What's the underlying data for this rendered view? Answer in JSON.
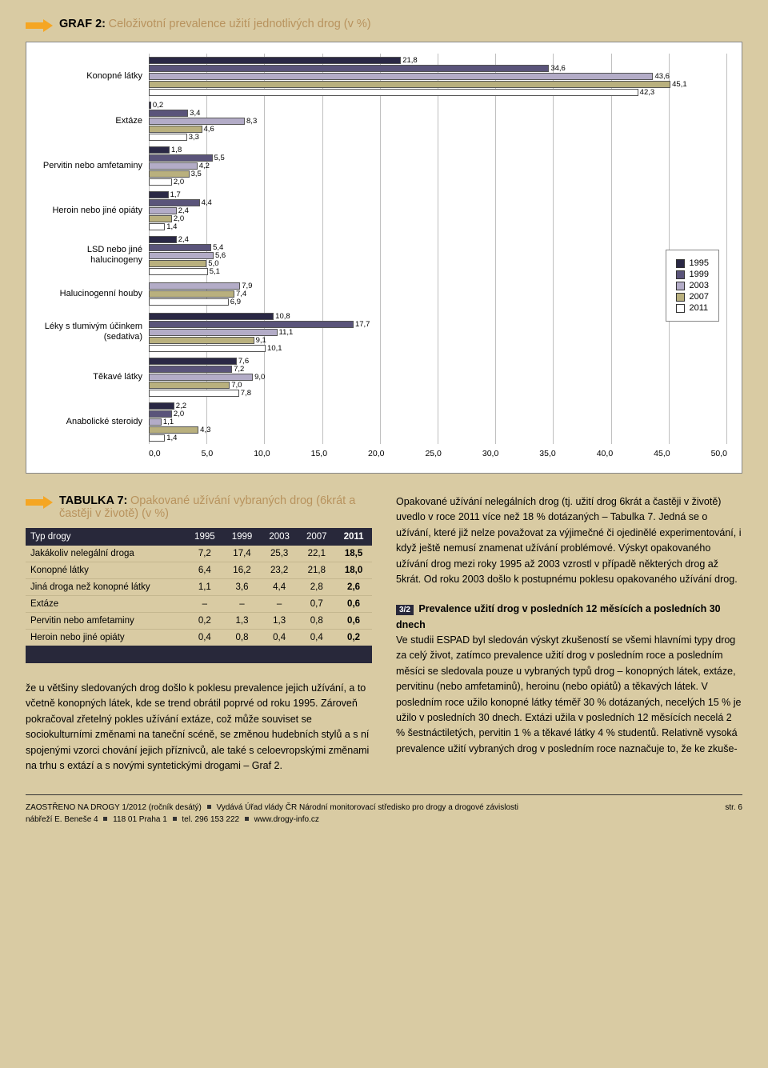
{
  "graf2": {
    "title_strong": "GRAF 2:",
    "title_rest": "Celoživotní prevalence užití jednotlivých drog (v %)",
    "xmax": 50,
    "xticks": [
      "0,0",
      "5,0",
      "10,0",
      "15,0",
      "20,0",
      "25,0",
      "30,0",
      "35,0",
      "40,0",
      "45,0",
      "50,0"
    ],
    "series": {
      "y1995": {
        "label": "1995",
        "color": "#2a2845"
      },
      "y1999": {
        "label": "1999",
        "color": "#5a547a"
      },
      "y2003": {
        "label": "2003",
        "color": "#b3acc7"
      },
      "y2007": {
        "label": "2007",
        "color": "#b9b07e"
      },
      "y2011": {
        "label": "2011",
        "color": "#ffffff"
      }
    },
    "groups": [
      {
        "label": "Konopné látky",
        "bars": [
          {
            "v": 21.8,
            "t": "21,8",
            "s": "y1995"
          },
          {
            "v": 34.6,
            "t": "34,6",
            "s": "y1999"
          },
          {
            "v": 43.6,
            "t": "43,6",
            "s": "y2003"
          },
          {
            "v": 45.1,
            "t": "45,1",
            "s": "y2007"
          },
          {
            "v": 42.3,
            "t": "42,3",
            "s": "y2011"
          }
        ]
      },
      {
        "label": "Extáze",
        "bars": [
          {
            "v": 0.2,
            "t": "0,2",
            "s": "y1995"
          },
          {
            "v": 3.4,
            "t": "3,4",
            "s": "y1999"
          },
          {
            "v": 8.3,
            "t": "8,3",
            "s": "y2003"
          },
          {
            "v": 4.6,
            "t": "4,6",
            "s": "y2007"
          },
          {
            "v": 3.3,
            "t": "3,3",
            "s": "y2011"
          }
        ]
      },
      {
        "label": "Pervitin nebo amfetaminy",
        "bars": [
          {
            "v": 1.8,
            "t": "1,8",
            "s": "y1995"
          },
          {
            "v": 5.5,
            "t": "5,5",
            "s": "y1999"
          },
          {
            "v": 4.2,
            "t": "4,2",
            "s": "y2003"
          },
          {
            "v": 3.5,
            "t": "3,5",
            "s": "y2007"
          },
          {
            "v": 2.0,
            "t": "2,0",
            "s": "y2011"
          }
        ]
      },
      {
        "label": "Heroin nebo jiné opiáty",
        "bars": [
          {
            "v": 1.7,
            "t": "1,7",
            "s": "y1995"
          },
          {
            "v": 4.4,
            "t": "4,4",
            "s": "y1999"
          },
          {
            "v": 2.4,
            "t": "2,4",
            "s": "y2003"
          },
          {
            "v": 2.0,
            "t": "2,0",
            "s": "y2007"
          },
          {
            "v": 1.4,
            "t": "1,4",
            "s": "y2011"
          }
        ]
      },
      {
        "label": "LSD nebo jiné halucinogeny",
        "bars": [
          {
            "v": 2.4,
            "t": "2,4",
            "s": "y1995"
          },
          {
            "v": 5.4,
            "t": "5,4",
            "s": "y1999"
          },
          {
            "v": 5.6,
            "t": "5,6",
            "s": "y2003"
          },
          {
            "v": 5.0,
            "t": "5,0",
            "s": "y2007"
          },
          {
            "v": 5.1,
            "t": "5,1",
            "s": "y2011"
          }
        ]
      },
      {
        "label": "Halucinogenní houby",
        "bars": [
          {
            "v": 7.9,
            "t": "7,9",
            "s": "y2003"
          },
          {
            "v": 7.4,
            "t": "7,4",
            "s": "y2007"
          },
          {
            "v": 6.9,
            "t": "6,9",
            "s": "y2011"
          }
        ]
      },
      {
        "label": "Léky s tlumivým účinkem (sedativa)",
        "bars": [
          {
            "v": 10.8,
            "t": "10,8",
            "s": "y1995"
          },
          {
            "v": 17.7,
            "t": "17,7",
            "s": "y1999"
          },
          {
            "v": 11.1,
            "t": "11,1",
            "s": "y2003"
          },
          {
            "v": 9.1,
            "t": "9,1",
            "s": "y2007"
          },
          {
            "v": 10.1,
            "t": "10,1",
            "s": "y2011"
          }
        ]
      },
      {
        "label": "Těkavé látky",
        "bars": [
          {
            "v": 7.6,
            "t": "7,6",
            "s": "y1995"
          },
          {
            "v": 7.2,
            "t": "7,2",
            "s": "y1999"
          },
          {
            "v": 9.0,
            "t": "9,0",
            "s": "y2003"
          },
          {
            "v": 7.0,
            "t": "7,0",
            "s": "y2007"
          },
          {
            "v": 7.8,
            "t": "7,8",
            "s": "y2011"
          }
        ]
      },
      {
        "label": "Anabolické steroidy",
        "bars": [
          {
            "v": 2.2,
            "t": "2,2",
            "s": "y1995"
          },
          {
            "v": 2.0,
            "t": "2,0",
            "s": "y1999"
          },
          {
            "v": 1.1,
            "t": "1,1",
            "s": "y2003"
          },
          {
            "v": 4.3,
            "t": "4,3",
            "s": "y2007"
          },
          {
            "v": 1.4,
            "t": "1,4",
            "s": "y2011"
          }
        ]
      }
    ],
    "group_heights": [
      56,
      56,
      56,
      56,
      56,
      40,
      56,
      56,
      56
    ]
  },
  "tab7": {
    "title_strong": "TABULKA 7:",
    "title_rest": "Opakované užívání vybraných drog (6krát a častěji v životě) (v %)",
    "cols": [
      "Typ drogy",
      "1995",
      "1999",
      "2003",
      "2007",
      "2011"
    ],
    "rows": [
      [
        "Jakákoliv nelegální droga",
        "7,2",
        "17,4",
        "25,3",
        "22,1",
        "18,5"
      ],
      [
        "Konopné látky",
        "6,4",
        "16,2",
        "23,2",
        "21,8",
        "18,0"
      ],
      [
        "Jiná droga než konopné látky",
        "1,1",
        "3,6",
        "4,4",
        "2,8",
        "2,6"
      ],
      [
        "Extáze",
        "–",
        "–",
        "–",
        "0,7",
        "0,6"
      ],
      [
        "Pervitin nebo amfetaminy",
        "0,2",
        "1,3",
        "1,3",
        "0,8",
        "0,6"
      ],
      [
        "Heroin nebo jiné opiáty",
        "0,4",
        "0,8",
        "0,4",
        "0,4",
        "0,2"
      ]
    ]
  },
  "text": {
    "left_para": "že u většiny sledovaných drog došlo k poklesu prevalence jejich užívání, a to včetně konopných látek, kde se trend obrátil poprvé od roku 1995. Zároveň pokračoval zřetelný pokles užívání extáze, což může souviset se sociokulturními změnami na taneční scéně, se změnou hudebních stylů a s ní spojenými vzorci chování jejich příznivců, ale také s celoevropskými změnami na trhu s extází a s novými syntetickými drogami – Graf 2.",
    "right_para1": "Opakované užívání nelegálních drog (tj. užití drog 6krát a častěji v životě) uvedlo v roce 2011 více než 18 % dotázaných – Tabulka 7. Jedná se o užívání, které již nelze považovat za výjimečné či ojedinělé experimentování, i když ještě nemusí znamenat užívání problémové. Výskyt opakovaného užívání drog mezi roky 1995 až 2003 vzrostl v případě některých drog až 5krát. Od roku 2003 došlo k postupnému poklesu opakovaného užívání drog.",
    "sec32_tag": "3/2",
    "sec32_head": "Prevalence užití drog v posledních 12 měsících a posledních 30 dnech",
    "sec32_body": "Ve studii ESPAD byl sledován výskyt zkušeností se všemi hlavními typy drog za celý život, zatímco prevalence užití drog v posledním roce a posledním měsíci se sledovala pouze u vybraných typů drog – konopných látek, extáze, pervitinu (nebo amfetaminů), heroinu (nebo opiátů) a těkavých látek. V posledním roce užilo konopné látky téměř 30 % dotázaných, necelých 15 % je užilo v posledních 30 dnech. Extázi užila v posledních 12 měsících necelá 2 % šestnáctiletých, pervitin 1 % a těkavé látky 4 % studentů. Relativně vysoká prevalence užití vybraných drog v posledním roce naznačuje to, že ke zkuše-"
  },
  "footer": {
    "left": "ZAOSTŘENO NA DROGY 1/2012 (ročník desátý)  ■  Vydává Úřad vlády ČR      Národní monitorovací středisko pro drogy a drogové závislosti\nnábřeží E. Beneše 4  ■  118 01 Praha 1  ■  tel. 296 153 222  ■  www.drogy-info.cz",
    "right": "str. 6"
  }
}
